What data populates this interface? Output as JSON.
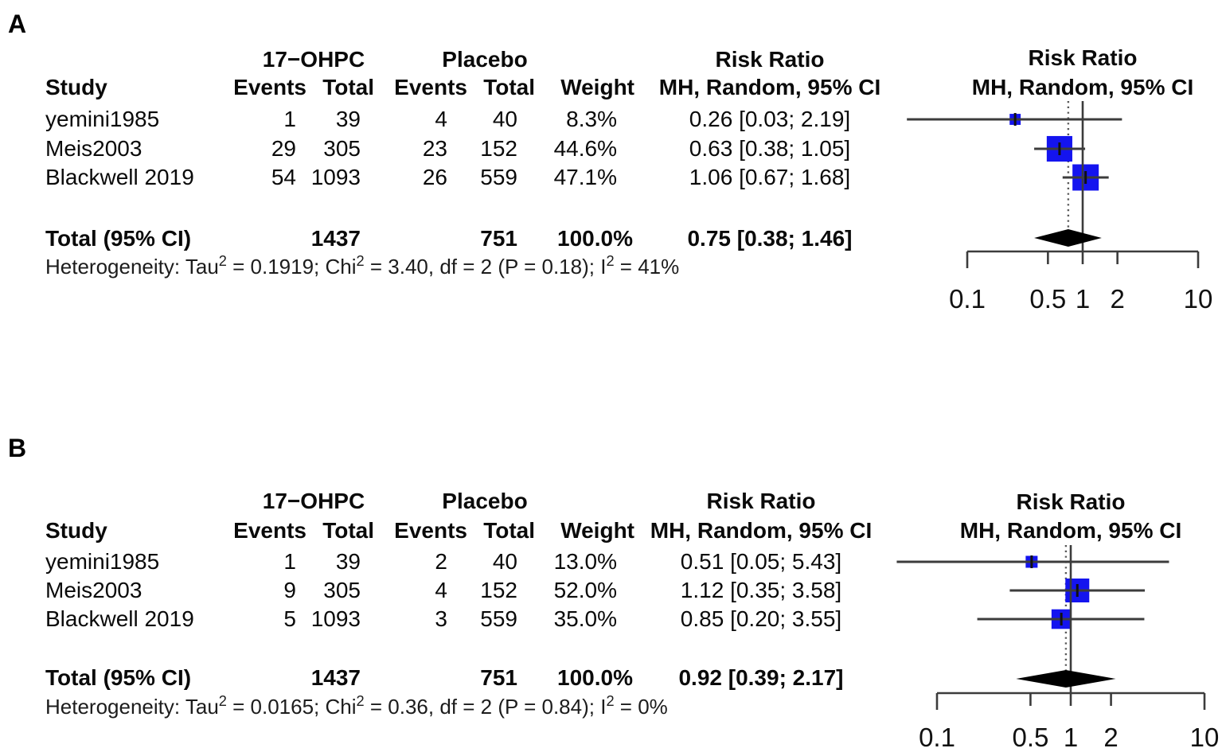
{
  "colors": {
    "square_blue": "#1414ef",
    "diamond_black": "#000000",
    "ci_line": "#3c3c3c",
    "dotted_line": "#595959"
  },
  "chart_data": [
    {
      "type": "forest",
      "panel_label": "A",
      "effect_measure": "Risk Ratio",
      "model_label": "MH, Random, 95% CI",
      "group1_label": "17−OHPC",
      "group2_label": "Placebo",
      "headers": {
        "study": "Study",
        "events": "Events",
        "total": "Total",
        "weight": "Weight"
      },
      "studies": [
        {
          "study": "yemini1985",
          "events1": 1,
          "total1": 39,
          "events2": 4,
          "total2": 40,
          "weight": "8.3%",
          "weight_pct": 8.3,
          "rr": 0.26,
          "ci_low": 0.03,
          "ci_high": 2.19,
          "rr_label": "0.26 [0.03; 2.19]"
        },
        {
          "study": "Meis2003",
          "events1": 29,
          "total1": 305,
          "events2": 23,
          "total2": 152,
          "weight": "44.6%",
          "weight_pct": 44.6,
          "rr": 0.63,
          "ci_low": 0.38,
          "ci_high": 1.05,
          "rr_label": "0.63 [0.38; 1.05]"
        },
        {
          "study": "Blackwell 2019",
          "events1": 54,
          "total1": 1093,
          "events2": 26,
          "total2": 559,
          "weight": "47.1%",
          "weight_pct": 47.1,
          "rr": 1.06,
          "ci_low": 0.67,
          "ci_high": 1.68,
          "rr_label": "1.06 [0.67; 1.68]"
        }
      ],
      "total": {
        "label": "Total (95% CI)",
        "total1": 1437,
        "total2": 751,
        "weight": "100.0%",
        "rr": 0.75,
        "ci_low": 0.38,
        "ci_high": 1.46,
        "rr_label": "0.75 [0.38; 1.46]"
      },
      "heterogeneity": [
        {
          "text": "Heterogeneity: Tau",
          "sup": false
        },
        {
          "text": "2",
          "sup": true
        },
        {
          "text": " = 0.1919; Chi",
          "sup": false
        },
        {
          "text": "2",
          "sup": true
        },
        {
          "text": " = 3.40, df = 2 (P = 0.18); I",
          "sup": false
        },
        {
          "text": "2",
          "sup": true
        },
        {
          "text": " = 41%",
          "sup": false
        }
      ],
      "x_axis": {
        "scale": "log",
        "min": 0.1,
        "max": 10,
        "ticks": [
          0.1,
          0.5,
          1,
          2,
          10
        ],
        "tick_labels": [
          "0.1",
          "0.5",
          "1",
          "2",
          "10"
        ],
        "ref_line": 1
      }
    },
    {
      "type": "forest",
      "panel_label": "B",
      "effect_measure": "Risk Ratio",
      "model_label": "MH, Random, 95% CI",
      "group1_label": "17−OHPC",
      "group2_label": "Placebo",
      "headers": {
        "study": "Study",
        "events": "Events",
        "total": "Total",
        "weight": "Weight"
      },
      "studies": [
        {
          "study": "yemini1985",
          "events1": 1,
          "total1": 39,
          "events2": 2,
          "total2": 40,
          "weight": "13.0%",
          "weight_pct": 13.0,
          "rr": 0.51,
          "ci_low": 0.05,
          "ci_high": 5.43,
          "rr_label": "0.51 [0.05; 5.43]"
        },
        {
          "study": "Meis2003",
          "events1": 9,
          "total1": 305,
          "events2": 4,
          "total2": 152,
          "weight": "52.0%",
          "weight_pct": 52.0,
          "rr": 1.12,
          "ci_low": 0.35,
          "ci_high": 3.58,
          "rr_label": "1.12 [0.35; 3.58]"
        },
        {
          "study": "Blackwell 2019",
          "events1": 5,
          "total1": 1093,
          "events2": 3,
          "total2": 559,
          "weight": "35.0%",
          "weight_pct": 35.0,
          "rr": 0.85,
          "ci_low": 0.2,
          "ci_high": 3.55,
          "rr_label": "0.85 [0.20; 3.55]"
        }
      ],
      "total": {
        "label": "Total (95% CI)",
        "total1": 1437,
        "total2": 751,
        "weight": "100.0%",
        "rr": 0.92,
        "ci_low": 0.39,
        "ci_high": 2.17,
        "rr_label": "0.92 [0.39; 2.17]"
      },
      "heterogeneity": [
        {
          "text": "Heterogeneity: Tau",
          "sup": false
        },
        {
          "text": "2",
          "sup": true
        },
        {
          "text": " = 0.0165; Chi",
          "sup": false
        },
        {
          "text": "2",
          "sup": true
        },
        {
          "text": " = 0.36, df = 2 (P = 0.84); I",
          "sup": false
        },
        {
          "text": "2",
          "sup": true
        },
        {
          "text": " = 0%",
          "sup": false
        }
      ],
      "x_axis": {
        "scale": "log",
        "min": 0.1,
        "max": 10,
        "ticks": [
          0.1,
          0.5,
          1,
          2,
          10
        ],
        "tick_labels": [
          "0.1",
          "0.5",
          "1",
          "2",
          "10"
        ],
        "ref_line": 1
      }
    }
  ]
}
